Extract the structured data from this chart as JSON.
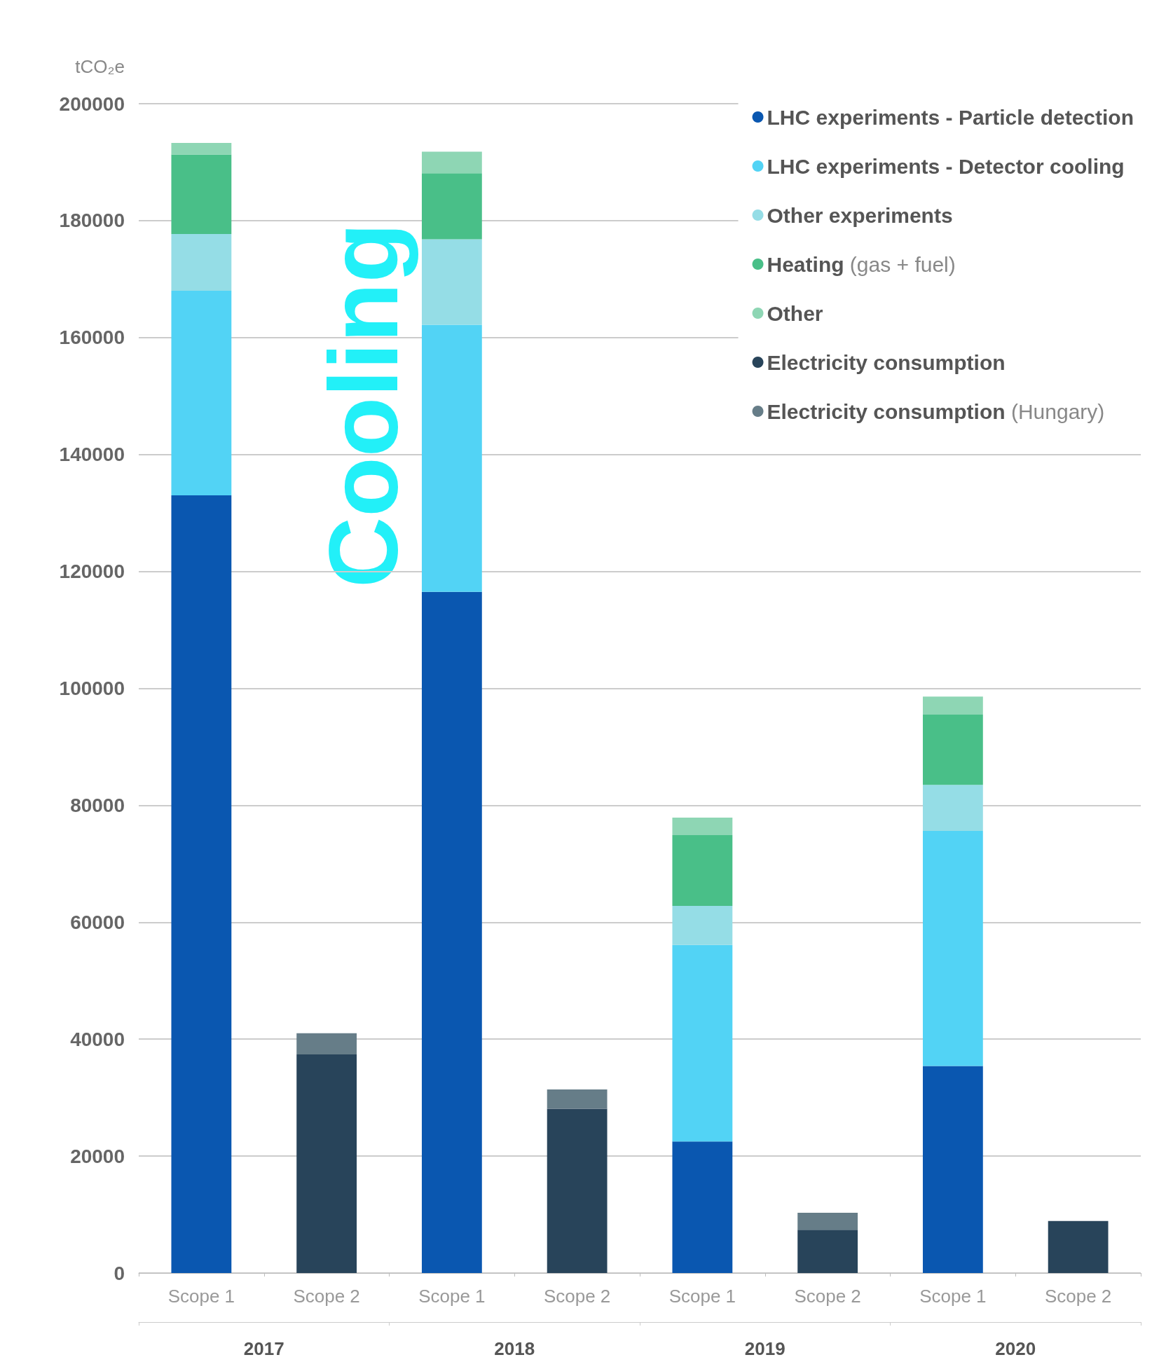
{
  "chart_data": {
    "type": "bar",
    "stacked": true,
    "ylabel": "tCO₂e",
    "categories": [
      "Scope 1",
      "Scope 2",
      "Scope 1",
      "Scope 2",
      "Scope 1",
      "Scope 2",
      "Scope 1",
      "Scope 2"
    ],
    "series": [
      {
        "name": "LHC experiments - Particle detection",
        "color": "#0a57b0",
        "values": [
          133000,
          null,
          116500,
          null,
          22500,
          null,
          35400,
          null
        ]
      },
      {
        "name": "LHC experiments - Detector cooling",
        "color": "#52d3f5",
        "values": [
          35000,
          null,
          45700,
          null,
          33600,
          null,
          40200,
          null
        ]
      },
      {
        "name": "Other experiments",
        "color": "#95dde6",
        "values": [
          9700,
          null,
          14600,
          null,
          6700,
          null,
          7900,
          null
        ]
      },
      {
        "name": "Heating (gas + fuel)",
        "color": "#49bf88",
        "values": [
          13600,
          null,
          11300,
          null,
          12100,
          null,
          12000,
          null
        ]
      },
      {
        "name": "Other",
        "color": "#8ed6b4",
        "values": [
          2000,
          null,
          3700,
          null,
          3000,
          null,
          3100,
          null
        ]
      },
      {
        "name": "Electricity consumption",
        "color": "#28445a",
        "values": [
          null,
          37400,
          null,
          28100,
          null,
          7400,
          null,
          8900
        ]
      },
      {
        "name": "Electricity consumption (Hungary)",
        "color": "#667d88",
        "values": [
          null,
          3600,
          null,
          3300,
          null,
          2900,
          null,
          0
        ]
      }
    ],
    "ylim": [
      0,
      200000
    ],
    "yticks": [
      0,
      20000,
      40000,
      60000,
      80000,
      100000,
      120000,
      140000,
      160000,
      180000,
      200000
    ],
    "grid": "y",
    "legend": "top right",
    "annotations": [
      "Cooling",
      "2017",
      "2018",
      "2019",
      "2020"
    ]
  }
}
